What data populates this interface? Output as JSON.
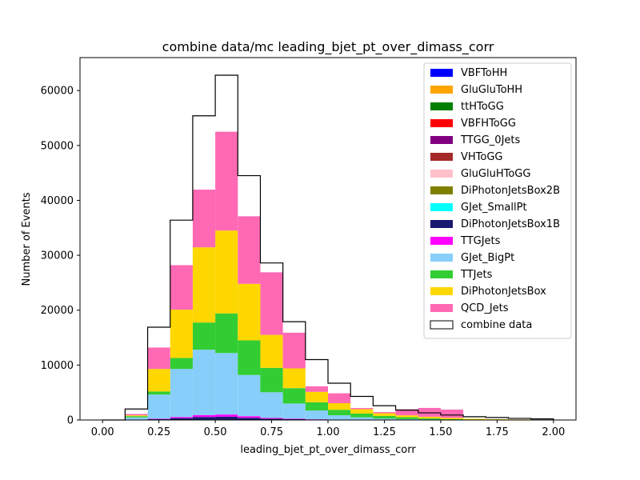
{
  "chart_data": {
    "type": "bar",
    "title": "combine data/mc leading_bjet_pt_over_dimass_corr",
    "xlabel": "leading_bjet_pt_over_dimass_corr",
    "ylabel": "Number of Events",
    "xlim": [
      -0.1,
      2.1
    ],
    "ylim": [
      0,
      66000
    ],
    "xticks": [
      "0.00",
      "0.25",
      "0.50",
      "0.75",
      "1.00",
      "1.25",
      "1.50",
      "1.75",
      "2.00"
    ],
    "xtick_values": [
      0,
      0.25,
      0.5,
      0.75,
      1.0,
      1.25,
      1.5,
      1.75,
      2.0
    ],
    "yticks": [
      "0",
      "10000",
      "20000",
      "30000",
      "40000",
      "50000",
      "60000"
    ],
    "ytick_values": [
      0,
      10000,
      20000,
      30000,
      40000,
      50000,
      60000
    ],
    "bin_edges": [
      0.0,
      0.1,
      0.2,
      0.3,
      0.4,
      0.5,
      0.6,
      0.7,
      0.8,
      0.9,
      1.0,
      1.1,
      1.2,
      1.3,
      1.4,
      1.5,
      1.6,
      1.7,
      1.8,
      1.9,
      2.0
    ],
    "stacked": true,
    "legend_position": "upper right",
    "series": [
      {
        "name": "VBFToHH",
        "color": "#0000ff",
        "values": [
          0,
          0,
          0,
          0,
          0,
          0,
          0,
          0,
          0,
          0,
          0,
          0,
          0,
          0,
          0,
          0,
          0,
          0,
          0,
          0
        ]
      },
      {
        "name": "GluGluToHH",
        "color": "#ffa500",
        "values": [
          0,
          0,
          0,
          0,
          0,
          0,
          0,
          0,
          0,
          0,
          0,
          0,
          0,
          0,
          0,
          0,
          0,
          0,
          0,
          0
        ]
      },
      {
        "name": "ttHToGG",
        "color": "#008000",
        "values": [
          0,
          0,
          0,
          0,
          0,
          0,
          0,
          0,
          0,
          0,
          0,
          0,
          0,
          0,
          0,
          0,
          0,
          0,
          0,
          0
        ]
      },
      {
        "name": "VBFHToGG",
        "color": "#ff0000",
        "values": [
          0,
          0,
          0,
          0,
          0,
          0,
          0,
          0,
          0,
          0,
          0,
          0,
          0,
          0,
          0,
          0,
          0,
          0,
          0,
          0
        ]
      },
      {
        "name": "TTGG_0Jets",
        "color": "#800080",
        "values": [
          0,
          0,
          0,
          0,
          0,
          0,
          0,
          0,
          0,
          0,
          0,
          0,
          0,
          0,
          0,
          0,
          0,
          0,
          0,
          0
        ]
      },
      {
        "name": "VHToGG",
        "color": "#a52a2a",
        "values": [
          0,
          0,
          0,
          0,
          0,
          0,
          0,
          0,
          0,
          0,
          0,
          0,
          0,
          0,
          0,
          0,
          0,
          0,
          0,
          0
        ]
      },
      {
        "name": "GluGluHToGG",
        "color": "#ffc0cb",
        "values": [
          0,
          0,
          0,
          0,
          0,
          0,
          0,
          0,
          0,
          0,
          0,
          0,
          0,
          0,
          0,
          0,
          0,
          0,
          0,
          0
        ]
      },
      {
        "name": "DiPhotonJetsBox2B",
        "color": "#808000",
        "values": [
          0,
          0,
          0,
          0,
          0,
          0,
          0,
          0,
          0,
          0,
          0,
          0,
          0,
          0,
          0,
          0,
          0,
          0,
          0,
          0
        ]
      },
      {
        "name": "GJet_SmallPt",
        "color": "#00ffff",
        "values": [
          0,
          0,
          0,
          0,
          0,
          0,
          0,
          0,
          0,
          0,
          0,
          0,
          0,
          0,
          0,
          0,
          0,
          0,
          0,
          0
        ]
      },
      {
        "name": "DiPhotonJetsBox1B",
        "color": "#191970",
        "values": [
          0,
          50,
          150,
          350,
          550,
          600,
          400,
          250,
          150,
          80,
          40,
          20,
          10,
          5,
          0,
          0,
          0,
          0,
          0,
          0
        ]
      },
      {
        "name": "TTGJets",
        "color": "#ff00ff",
        "values": [
          0,
          20,
          80,
          200,
          350,
          400,
          300,
          150,
          100,
          50,
          20,
          10,
          5,
          0,
          0,
          0,
          0,
          0,
          0,
          0
        ]
      },
      {
        "name": "GJet_BigPt",
        "color": "#87cefa",
        "values": [
          0,
          400,
          4400,
          8750,
          11900,
          11200,
          7500,
          4650,
          2750,
          1600,
          800,
          450,
          250,
          150,
          100,
          50,
          20,
          10,
          5,
          0
        ]
      },
      {
        "name": "TTJets",
        "color": "#32cd32",
        "values": [
          0,
          230,
          570,
          2000,
          4950,
          7200,
          6300,
          4450,
          2800,
          1500,
          1000,
          700,
          480,
          350,
          200,
          100,
          50,
          30,
          20,
          10
        ]
      },
      {
        "name": "DiPhotonJetsBox",
        "color": "#ffd700",
        "values": [
          0,
          150,
          4100,
          8800,
          13700,
          15100,
          10300,
          6000,
          3600,
          1900,
          1200,
          800,
          500,
          350,
          300,
          250,
          150,
          100,
          80,
          60
        ]
      },
      {
        "name": "QCD_Jets",
        "color": "#ff69b4",
        "values": [
          0,
          250,
          3900,
          8100,
          10500,
          18000,
          12300,
          11400,
          6500,
          1000,
          1800,
          200,
          200,
          1100,
          1600,
          1500,
          0,
          0,
          0,
          0
        ]
      }
    ],
    "data": {
      "name": "combine data",
      "values": [
        0,
        2000,
        16900,
        36400,
        55400,
        62800,
        44500,
        28600,
        17900,
        11000,
        6700,
        4300,
        2600,
        1800,
        1300,
        900,
        600,
        450,
        300,
        200
      ]
    }
  }
}
